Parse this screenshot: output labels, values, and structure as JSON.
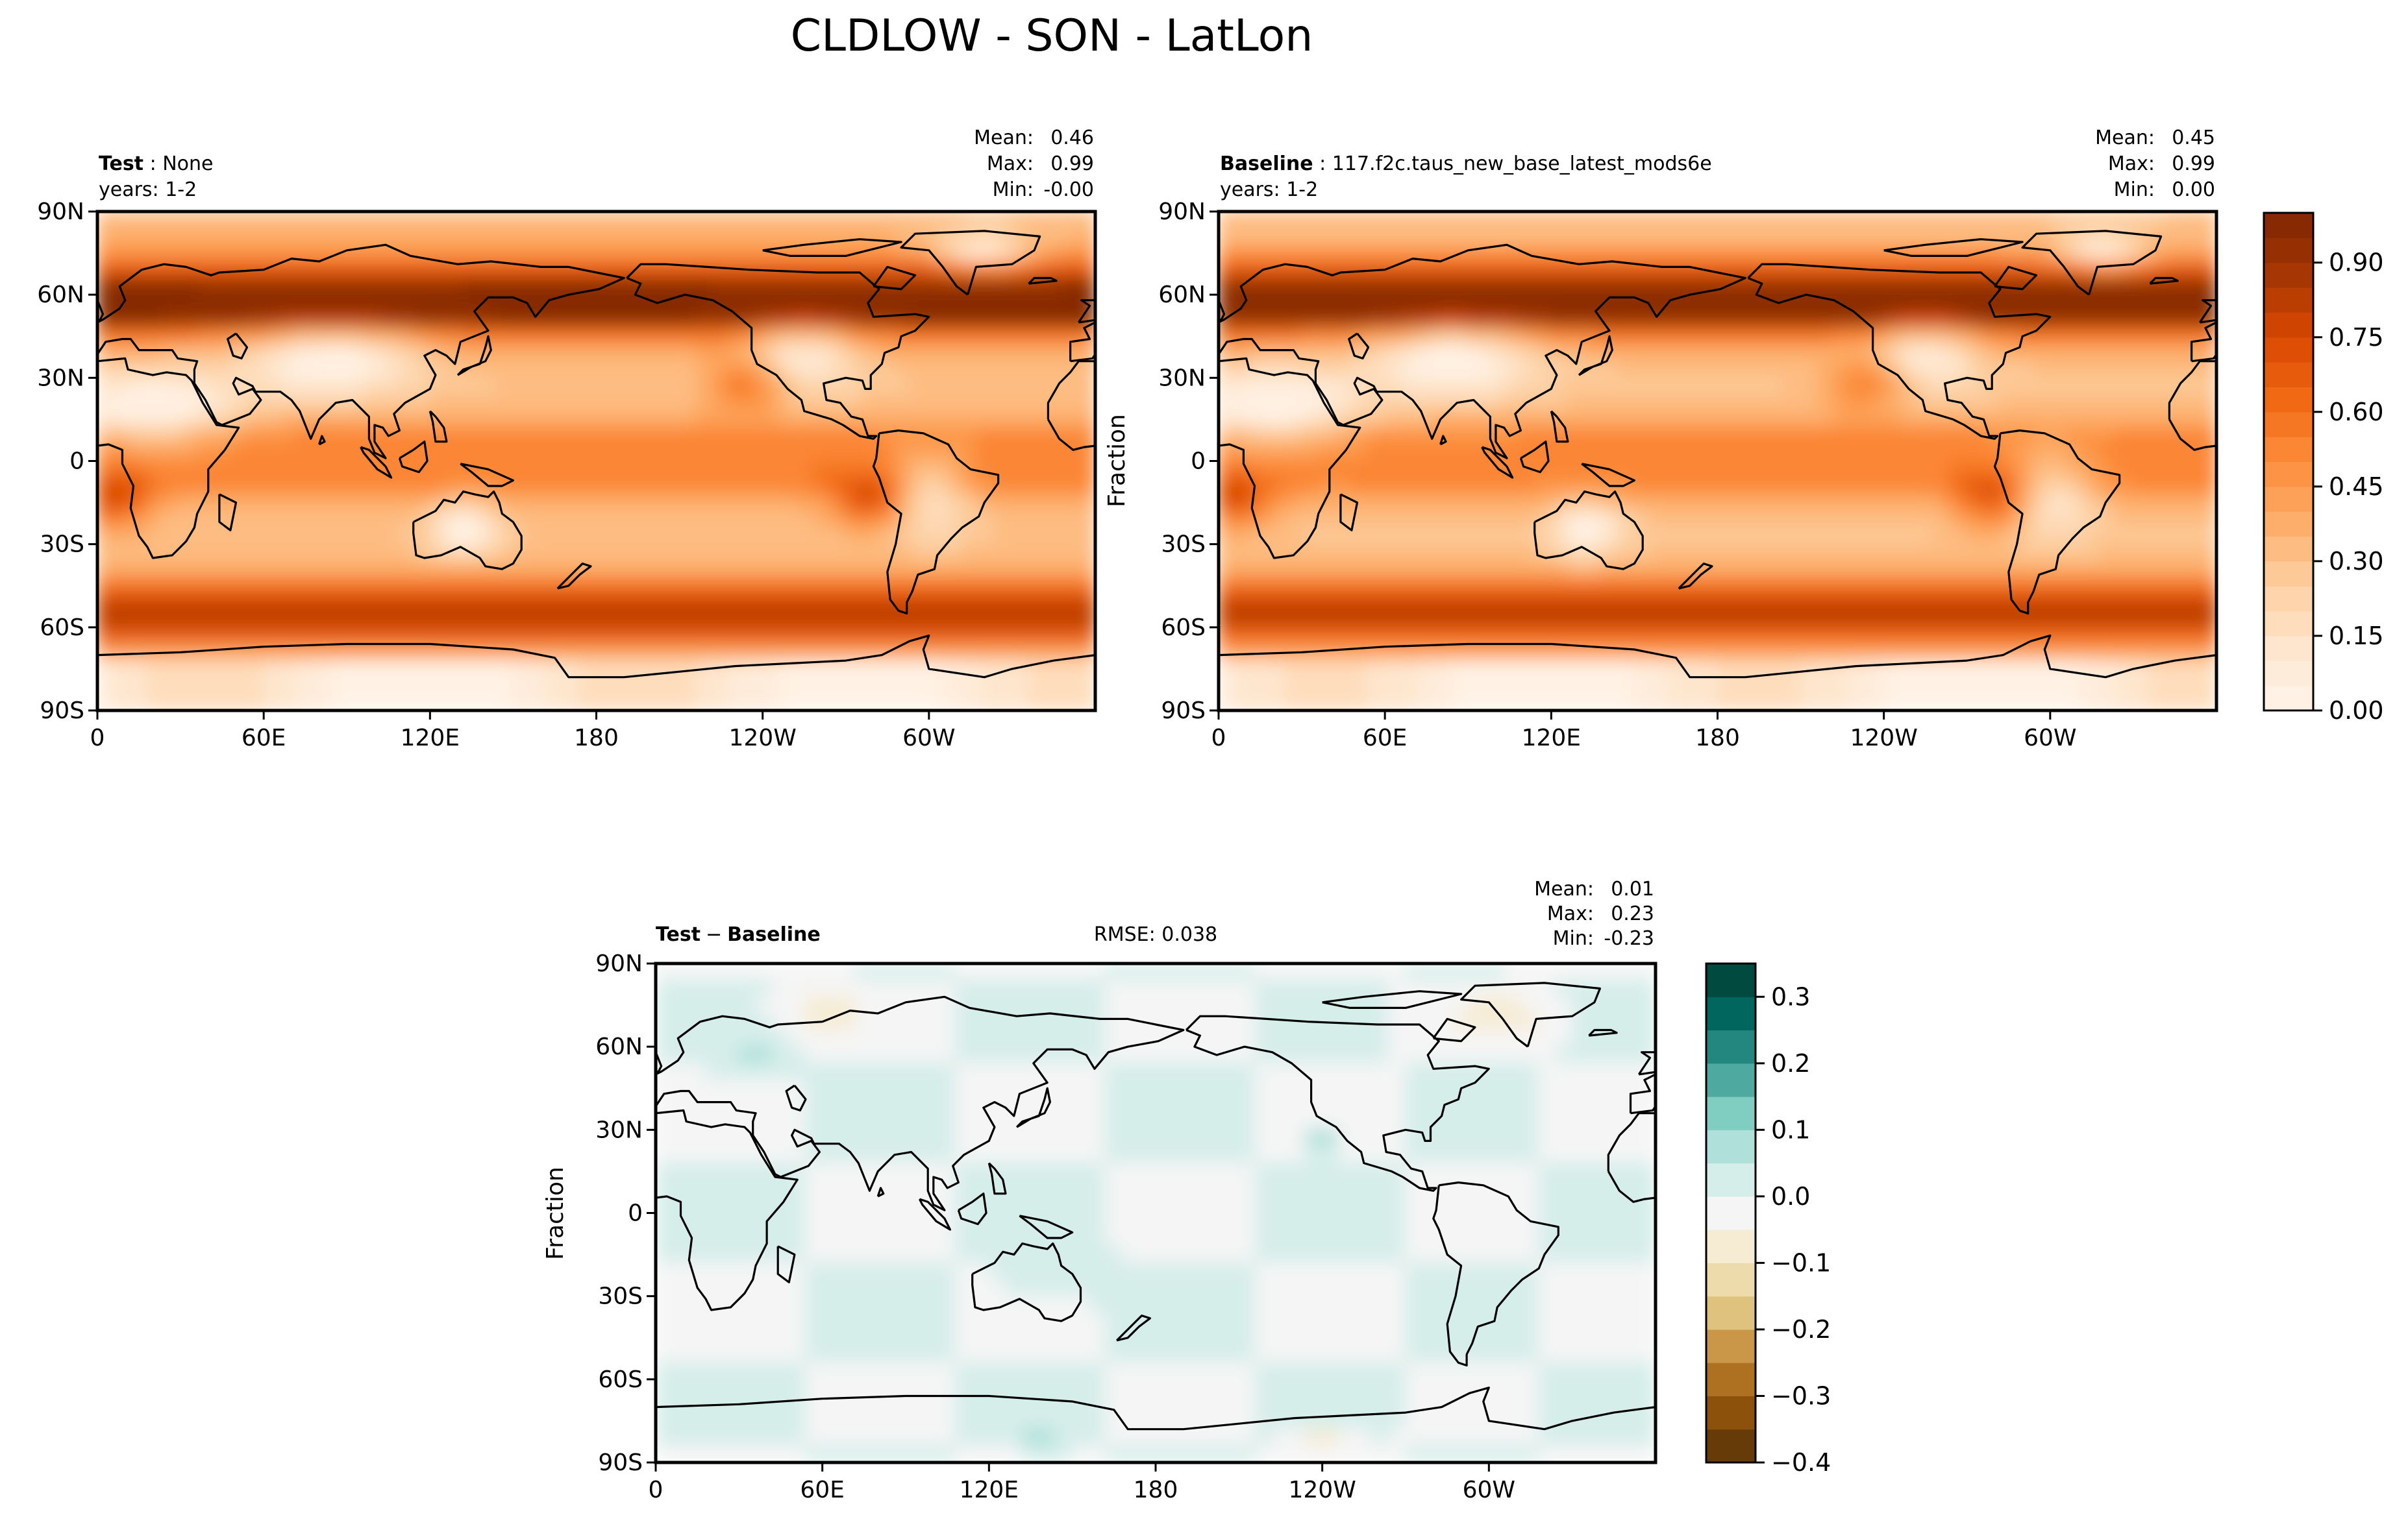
{
  "title": "CLDLOW - SON - LatLon",
  "panels": [
    {
      "id": "test",
      "label_bold": "Test",
      "label_value": "None",
      "years": "years: 1-2",
      "stats_labels": [
        "Mean:",
        "Max:",
        "Min:"
      ],
      "stats_values": [
        "0.46",
        "0.99",
        "-0.00"
      ],
      "ylabel": "",
      "field": "abs"
    },
    {
      "id": "baseline",
      "label_bold": "Baseline",
      "label_value": "117.f2c.taus_new_base_latest_mods6e",
      "years": "years: 1-2",
      "stats_labels": [
        "Mean:",
        "Max:",
        "Min:"
      ],
      "stats_values": [
        "0.45",
        "0.99",
        "0.00"
      ],
      "ylabel": "Fraction",
      "field": "abs"
    },
    {
      "id": "diff",
      "label_bold": "Test",
      "label_sep": "−",
      "label_bold2": "Baseline",
      "rmse": "RMSE: 0.038",
      "stats_labels": [
        "Mean:",
        "Max:",
        "Min:"
      ],
      "stats_values": [
        "0.01",
        "0.23",
        "-0.23"
      ],
      "ylabel": "Fraction",
      "field": "diff"
    }
  ],
  "lat_ticks": [
    {
      "value": 90,
      "label": "90N"
    },
    {
      "value": 60,
      "label": "60N"
    },
    {
      "value": 30,
      "label": "30N"
    },
    {
      "value": 0,
      "label": "0"
    },
    {
      "value": -30,
      "label": "30S"
    },
    {
      "value": -60,
      "label": "60S"
    },
    {
      "value": -90,
      "label": "90S"
    }
  ],
  "lon_ticks": [
    {
      "value": 0,
      "label": "0"
    },
    {
      "value": 60,
      "label": "60E"
    },
    {
      "value": 120,
      "label": "120E"
    },
    {
      "value": 180,
      "label": "180"
    },
    {
      "value": 240,
      "label": "120W"
    },
    {
      "value": 300,
      "label": "60W"
    }
  ],
  "colorbars": {
    "abs": {
      "min": 0.0,
      "max": 1.0,
      "levels": 20,
      "ticks": [
        {
          "value": 0.0,
          "label": "0.00"
        },
        {
          "value": 0.15,
          "label": "0.15"
        },
        {
          "value": 0.3,
          "label": "0.30"
        },
        {
          "value": 0.45,
          "label": "0.45"
        },
        {
          "value": 0.6,
          "label": "0.60"
        },
        {
          "value": 0.75,
          "label": "0.75"
        },
        {
          "value": 0.9,
          "label": "0.90"
        }
      ],
      "colors": [
        "#fff5eb",
        "#fee6ce",
        "#fdd0a2",
        "#fdae6b",
        "#fd8d3c",
        "#f16913",
        "#d94801",
        "#a63603",
        "#7f2704"
      ]
    },
    "diff": {
      "min": -0.4,
      "max": 0.35,
      "levels": 15,
      "ticks": [
        {
          "value": 0.3,
          "label": "0.3"
        },
        {
          "value": 0.2,
          "label": "0.2"
        },
        {
          "value": 0.1,
          "label": "0.1"
        },
        {
          "value": 0.0,
          "label": "0.0"
        },
        {
          "value": -0.1,
          "label": "−0.1"
        },
        {
          "value": -0.2,
          "label": "−0.2"
        },
        {
          "value": -0.3,
          "label": "−0.3"
        },
        {
          "value": -0.4,
          "label": "−0.4"
        }
      ],
      "colors": [
        "#543005",
        "#8c510a",
        "#bf812d",
        "#dfc27d",
        "#f6e8c3",
        "#f5f5f5",
        "#c7eae5",
        "#80cdc1",
        "#35978f",
        "#01665e",
        "#003c30"
      ]
    }
  }
}
